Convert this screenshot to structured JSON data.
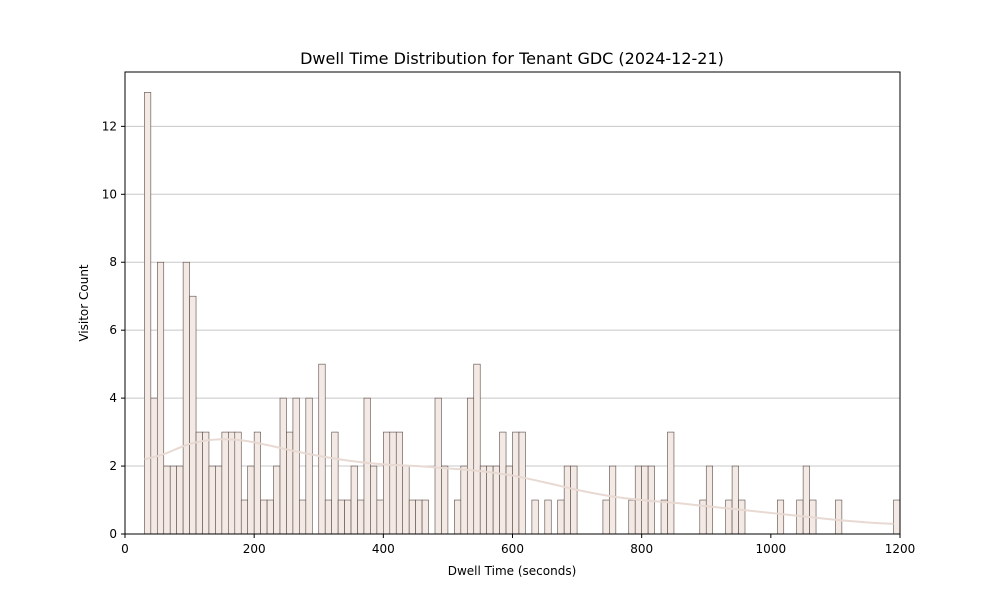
{
  "chart_data": {
    "type": "bar",
    "title": "Dwell Time Distribution for Tenant GDC (2024-12-21)",
    "xlabel": "Dwell Time (seconds)",
    "ylabel": "Visitor Count",
    "xlim": [
      0,
      1200
    ],
    "ylim": [
      0,
      13.6
    ],
    "xticks": [
      0,
      200,
      400,
      600,
      800,
      1000,
      1200
    ],
    "yticks": [
      0,
      2,
      4,
      6,
      8,
      10,
      12
    ],
    "grid": "horizontal",
    "colors": {
      "bar_fill": "#f3e9e5",
      "bar_edge": "#5a4a45",
      "kde_line": "#e8d9d2",
      "grid": "#c8c8c8"
    },
    "bin_width": 10,
    "bin_starts": [
      30,
      40,
      50,
      60,
      70,
      80,
      90,
      100,
      110,
      120,
      130,
      140,
      150,
      160,
      170,
      180,
      190,
      200,
      210,
      220,
      230,
      240,
      250,
      260,
      270,
      280,
      290,
      300,
      310,
      320,
      330,
      340,
      350,
      360,
      370,
      380,
      390,
      400,
      410,
      420,
      430,
      440,
      450,
      460,
      470,
      480,
      490,
      500,
      510,
      520,
      530,
      540,
      550,
      560,
      570,
      580,
      590,
      600,
      610,
      620,
      630,
      640,
      650,
      660,
      670,
      680,
      690,
      700,
      710,
      720,
      730,
      740,
      750,
      760,
      770,
      780,
      790,
      800,
      810,
      820,
      830,
      840,
      850,
      860,
      870,
      880,
      890,
      900,
      910,
      920,
      930,
      940,
      950,
      960,
      970,
      980,
      990,
      1000,
      1010,
      1020,
      1030,
      1040,
      1050,
      1060,
      1070,
      1080,
      1090,
      1100,
      1110,
      1120,
      1130,
      1140,
      1150,
      1160,
      1170,
      1180,
      1190
    ],
    "counts": [
      13,
      4,
      8,
      2,
      2,
      2,
      8,
      7,
      3,
      3,
      2,
      2,
      3,
      3,
      3,
      1,
      2,
      3,
      1,
      1,
      2,
      4,
      3,
      4,
      1,
      4,
      0,
      5,
      1,
      3,
      1,
      1,
      2,
      1,
      4,
      2,
      1,
      3,
      3,
      3,
      2,
      1,
      1,
      1,
      0,
      4,
      2,
      0,
      1,
      2,
      4,
      5,
      2,
      2,
      2,
      3,
      2,
      3,
      3,
      0,
      1,
      0,
      1,
      0,
      1,
      2,
      2,
      0,
      0,
      0,
      0,
      1,
      2,
      0,
      0,
      1,
      2,
      2,
      2,
      0,
      1,
      3,
      0,
      0,
      0,
      0,
      1,
      2,
      0,
      0,
      1,
      2,
      1,
      0,
      0,
      0,
      0,
      0,
      1,
      0,
      0,
      1,
      2,
      1,
      0,
      0,
      0,
      1,
      0,
      0,
      0,
      0,
      0,
      0,
      0,
      0,
      1
    ],
    "kde": {
      "x": [
        30,
        60,
        100,
        140,
        180,
        220,
        260,
        300,
        350,
        400,
        450,
        500,
        550,
        600,
        650,
        700,
        750,
        800,
        850,
        900,
        950,
        1000,
        1050,
        1100,
        1150,
        1190
      ],
      "y": [
        2.2,
        2.35,
        2.65,
        2.78,
        2.76,
        2.62,
        2.45,
        2.3,
        2.15,
        2.05,
        2.0,
        1.93,
        1.85,
        1.72,
        1.52,
        1.3,
        1.12,
        1.0,
        0.92,
        0.82,
        0.72,
        0.62,
        0.52,
        0.42,
        0.34,
        0.3
      ]
    }
  }
}
